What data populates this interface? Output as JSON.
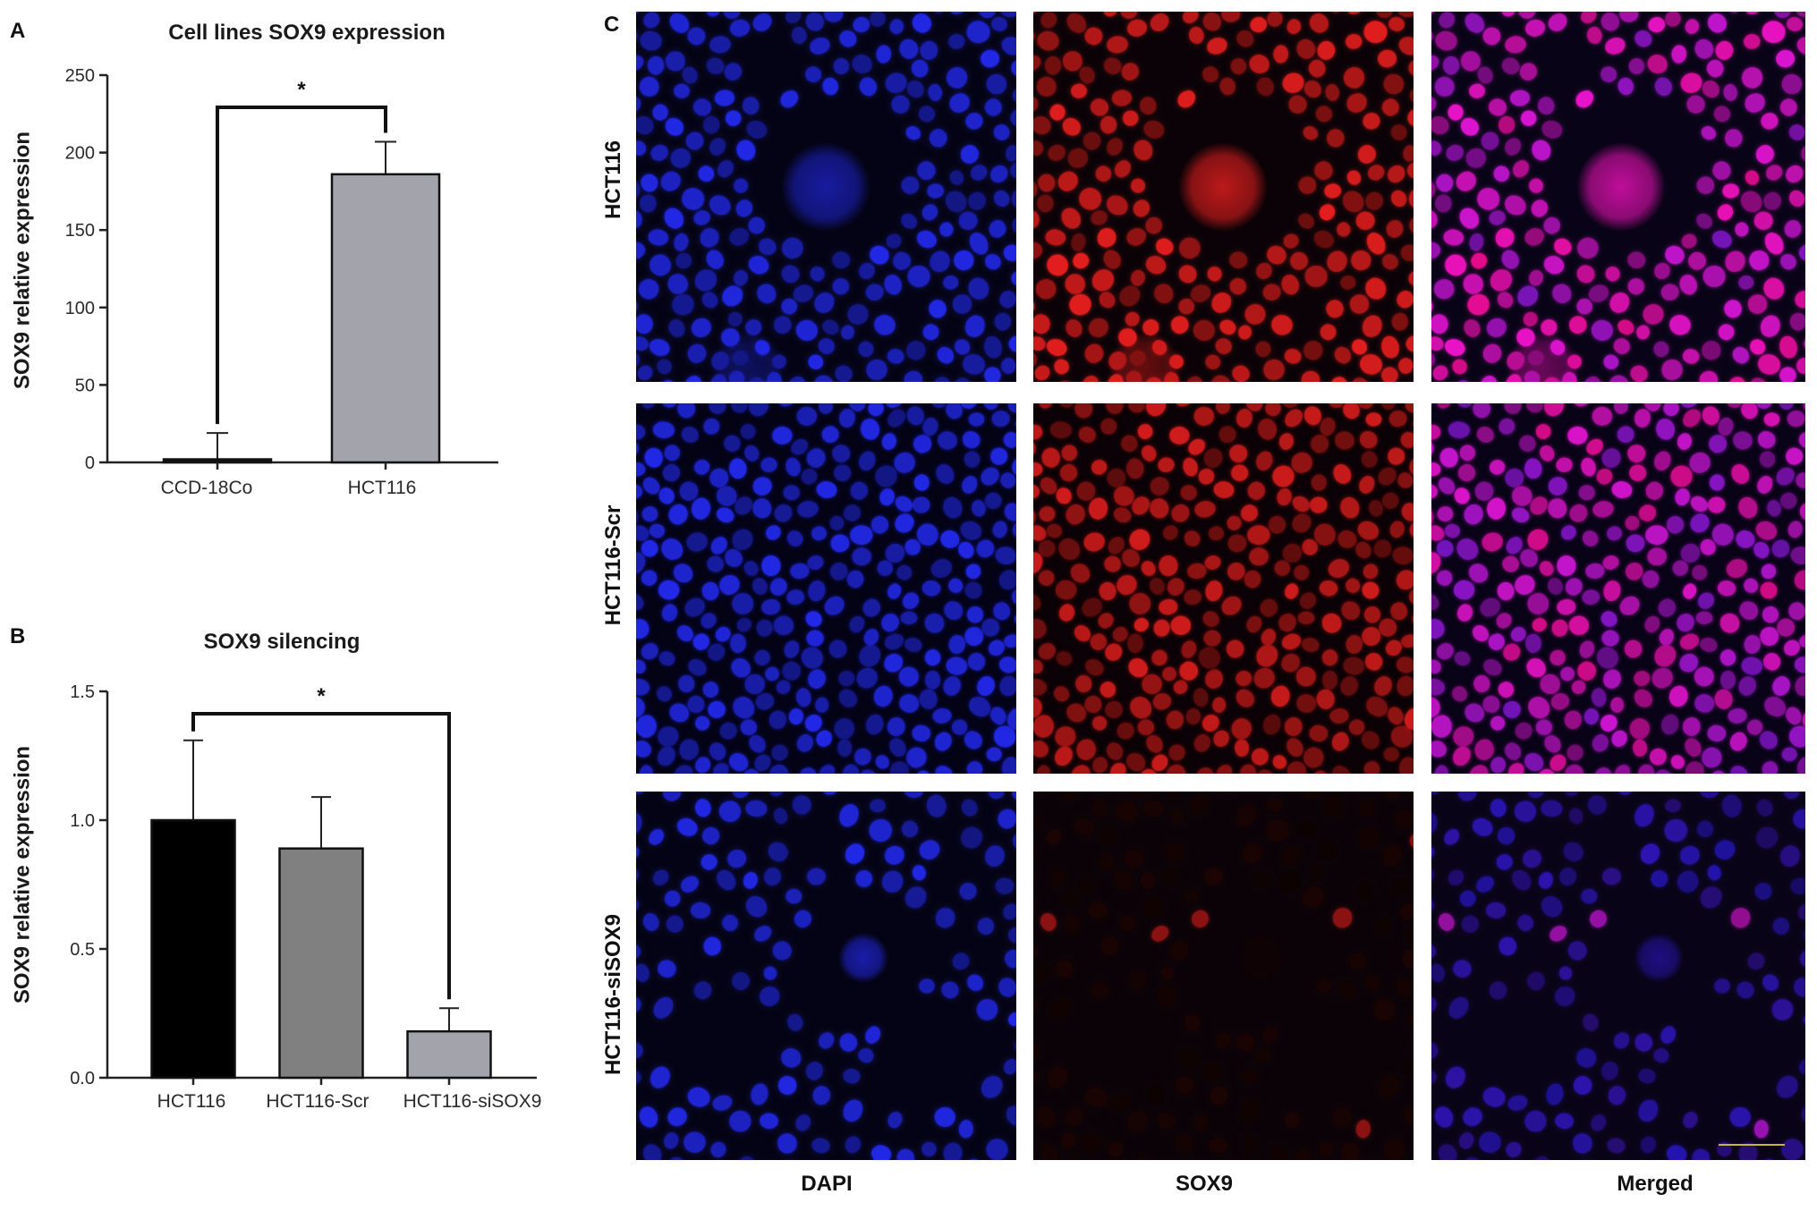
{
  "panels": {
    "a": "A",
    "b": "B",
    "c": "C"
  },
  "chart_data": [
    {
      "type": "bar",
      "title": "Cell lines SOX9 expression",
      "xlabel": "",
      "ylabel": "SOX9 relative expression",
      "categories": [
        "CCD-18Co",
        "HCT116"
      ],
      "values": [
        2,
        186
      ],
      "errors": [
        17,
        21
      ],
      "ylim": [
        0,
        250
      ],
      "yticks": [
        "0",
        "50",
        "100",
        "150",
        "200",
        "250"
      ],
      "colors": [
        "#111111",
        "#a3a3ab"
      ],
      "grid": false,
      "significance": [
        {
          "between": [
            0,
            1
          ],
          "label": "*"
        }
      ]
    },
    {
      "type": "bar",
      "title": "SOX9 silencing",
      "xlabel": "",
      "ylabel": "SOX9 relative expression",
      "categories": [
        "HCT116",
        "HCT116-Scr",
        "HCT116-siSOX9"
      ],
      "values": [
        1.0,
        0.89,
        0.18
      ],
      "errors": [
        0.31,
        0.2,
        0.09
      ],
      "ylim": [
        0,
        1.5
      ],
      "yticks": [
        "0.0",
        "0.5",
        "1.0",
        "1.5"
      ],
      "colors": [
        "#000000",
        "#808080",
        "#a3a3ab"
      ],
      "grid": false,
      "significance": [
        {
          "between": [
            0,
            2
          ],
          "label": "*"
        }
      ]
    }
  ],
  "micrographs": {
    "rows": [
      "HCT116",
      "HCT116-Scr",
      "HCT116-siSOX9"
    ],
    "columns": [
      "DAPI",
      "SOX9",
      "Merged"
    ],
    "dapi_color": "#2a32e6",
    "sox9_color": "#e61e1e",
    "sox9_intensity": [
      1.0,
      0.9,
      0.12
    ]
  }
}
